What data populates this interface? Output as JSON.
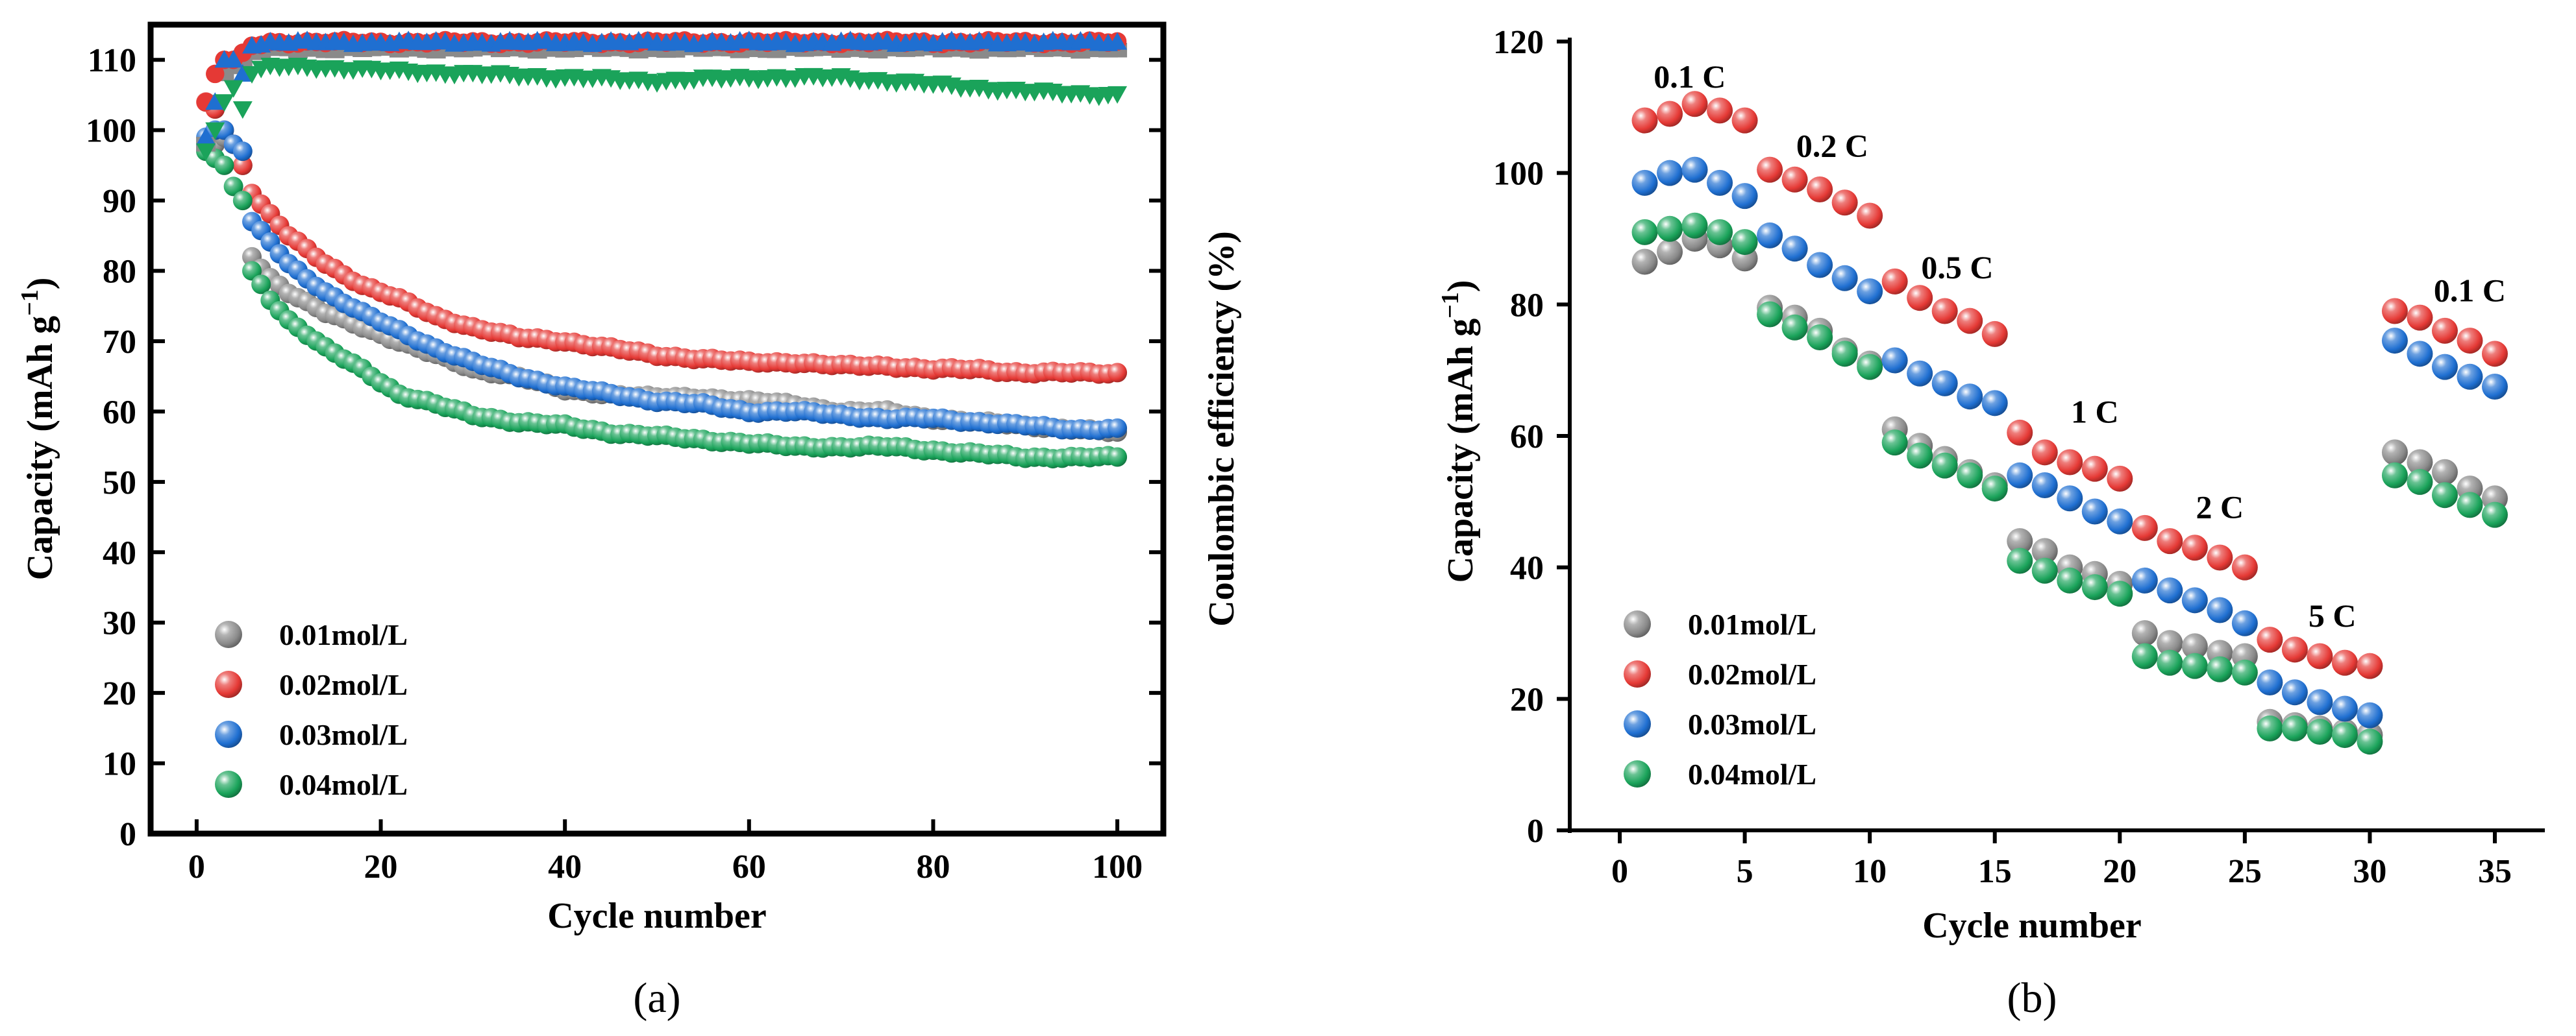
{
  "chart_data": [
    {
      "panel": "(a)",
      "type": "scatter",
      "xlabel": "Cycle number",
      "ylabel": "Capacity (mAh g",
      "ylabel_sup": "−1",
      "ylabel_close": ")",
      "y2label": "Coulombic efficiency (%)",
      "xlim": [
        -5,
        105
      ],
      "ylim": [
        0,
        115
      ],
      "xticks": [
        0,
        20,
        40,
        60,
        80,
        100
      ],
      "yticks": [
        0,
        10,
        20,
        30,
        40,
        50,
        60,
        70,
        80,
        90,
        100,
        110
      ],
      "legend_position": "bottom-left",
      "series": [
        {
          "name": "0.01mol/L",
          "color": "#8a8a8a",
          "ce_color": "#8a8a8a",
          "ce_marker": "square",
          "capacity": [
            [
              1,
              97
            ],
            [
              2,
              98
            ],
            [
              3,
              99
            ],
            [
              4,
              98
            ],
            [
              5,
              95
            ],
            [
              6,
              82
            ],
            [
              8,
              79
            ],
            [
              10,
              77
            ],
            [
              14,
              74
            ],
            [
              18,
              72
            ],
            [
              22,
              70
            ],
            [
              26,
              68
            ],
            [
              30,
              66
            ],
            [
              35,
              65
            ],
            [
              40,
              63
            ],
            [
              45,
              62.5
            ],
            [
              50,
              62
            ],
            [
              55,
              62
            ],
            [
              60,
              61.5
            ],
            [
              65,
              61
            ],
            [
              70,
              60
            ],
            [
              75,
              60
            ],
            [
              80,
              59
            ],
            [
              85,
              58.5
            ],
            [
              90,
              58
            ],
            [
              95,
              57.5
            ],
            [
              100,
              57
            ]
          ],
          "ce": [
            [
              1,
              98
            ],
            [
              2,
              104
            ],
            [
              3,
              108
            ],
            [
              4,
              109
            ],
            [
              6,
              111
            ],
            [
              8,
              111.5
            ],
            [
              12,
              111.5
            ],
            [
              20,
              111.5
            ],
            [
              30,
              111.5
            ],
            [
              40,
              111.5
            ],
            [
              50,
              111.5
            ],
            [
              60,
              111.5
            ],
            [
              70,
              111.5
            ],
            [
              80,
              111.5
            ],
            [
              90,
              111.5
            ],
            [
              100,
              111.5
            ]
          ]
        },
        {
          "name": "0.02mol/L",
          "color": "#e53935",
          "ce_color": "#e53935",
          "ce_marker": "circle",
          "capacity": [
            [
              1,
              104
            ],
            [
              2,
              103
            ],
            [
              3,
              100
            ],
            [
              4,
              98
            ],
            [
              5,
              95
            ],
            [
              6,
              91
            ],
            [
              8,
              88
            ],
            [
              10,
              85
            ],
            [
              14,
              81
            ],
            [
              18,
              78
            ],
            [
              22,
              76
            ],
            [
              26,
              73.5
            ],
            [
              30,
              72
            ],
            [
              35,
              70.5
            ],
            [
              40,
              70
            ],
            [
              45,
              69
            ],
            [
              50,
              68
            ],
            [
              55,
              67.5
            ],
            [
              60,
              67
            ],
            [
              65,
              67
            ],
            [
              70,
              66.5
            ],
            [
              75,
              66.5
            ],
            [
              80,
              66
            ],
            [
              85,
              66
            ],
            [
              90,
              65.5
            ],
            [
              95,
              65.5
            ],
            [
              100,
              65.5
            ]
          ],
          "ce": [
            [
              1,
              104
            ],
            [
              2,
              108
            ],
            [
              3,
              110
            ],
            [
              4,
              110
            ],
            [
              6,
              112
            ],
            [
              8,
              112.5
            ],
            [
              12,
              112.5
            ],
            [
              20,
              112.5
            ],
            [
              30,
              112.5
            ],
            [
              40,
              112.5
            ],
            [
              50,
              112.5
            ],
            [
              60,
              112.5
            ],
            [
              70,
              112.5
            ],
            [
              80,
              112.5
            ],
            [
              90,
              112.5
            ],
            [
              100,
              112.5
            ]
          ]
        },
        {
          "name": "0.03mol/L",
          "color": "#1f6fd1",
          "ce_color": "#1f6fd1",
          "ce_marker": "triangle-up",
          "capacity": [
            [
              1,
              99
            ],
            [
              2,
              100
            ],
            [
              3,
              100
            ],
            [
              4,
              98
            ],
            [
              5,
              97
            ],
            [
              6,
              87
            ],
            [
              8,
              84
            ],
            [
              10,
              81
            ],
            [
              14,
              77
            ],
            [
              18,
              74
            ],
            [
              22,
              71.5
            ],
            [
              26,
              69
            ],
            [
              30,
              67
            ],
            [
              35,
              65
            ],
            [
              40,
              63.5
            ],
            [
              45,
              62.5
            ],
            [
              50,
              61.5
            ],
            [
              55,
              61
            ],
            [
              60,
              60
            ],
            [
              65,
              60
            ],
            [
              70,
              59.5
            ],
            [
              75,
              59
            ],
            [
              80,
              59
            ],
            [
              85,
              58.5
            ],
            [
              90,
              58
            ],
            [
              95,
              57.5
            ],
            [
              100,
              57.5
            ]
          ],
          "ce": [
            [
              1,
              99
            ],
            [
              2,
              104
            ],
            [
              3,
              110
            ],
            [
              4,
              110
            ],
            [
              5,
              108
            ],
            [
              6,
              112
            ],
            [
              8,
              112.5
            ],
            [
              12,
              112.5
            ],
            [
              20,
              112.5
            ],
            [
              30,
              112.5
            ],
            [
              40,
              112.5
            ],
            [
              50,
              112.5
            ],
            [
              60,
              112.5
            ],
            [
              70,
              112.5
            ],
            [
              80,
              112.5
            ],
            [
              90,
              112.5
            ],
            [
              100,
              112.5
            ]
          ]
        },
        {
          "name": "0.04mol/L",
          "color": "#1aa35a",
          "ce_color": "#1aa35a",
          "ce_marker": "triangle-down",
          "capacity": [
            [
              1,
              97
            ],
            [
              2,
              96
            ],
            [
              3,
              95
            ],
            [
              4,
              92
            ],
            [
              5,
              90
            ],
            [
              6,
              80
            ],
            [
              8,
              76
            ],
            [
              10,
              73
            ],
            [
              14,
              69
            ],
            [
              18,
              66
            ],
            [
              22,
              62.5
            ],
            [
              26,
              61
            ],
            [
              30,
              59.5
            ],
            [
              35,
              58.5
            ],
            [
              40,
              58
            ],
            [
              45,
              57
            ],
            [
              50,
              56.5
            ],
            [
              55,
              56
            ],
            [
              60,
              55.5
            ],
            [
              65,
              55
            ],
            [
              70,
              55
            ],
            [
              75,
              55
            ],
            [
              80,
              54.5
            ],
            [
              85,
              54
            ],
            [
              90,
              53.5
            ],
            [
              95,
              53.5
            ],
            [
              100,
              53.5
            ]
          ],
          "ce": [
            [
              1,
              97
            ],
            [
              2,
              100
            ],
            [
              3,
              104
            ],
            [
              4,
              106
            ],
            [
              5,
              103
            ],
            [
              6,
              108
            ],
            [
              8,
              109
            ],
            [
              12,
              109
            ],
            [
              20,
              108.5
            ],
            [
              30,
              108
            ],
            [
              40,
              107.5
            ],
            [
              50,
              107
            ],
            [
              60,
              107.5
            ],
            [
              70,
              107.5
            ],
            [
              80,
              106.5
            ],
            [
              90,
              105.5
            ],
            [
              100,
              105
            ]
          ]
        }
      ]
    },
    {
      "panel": "(b)",
      "type": "scatter",
      "xlabel": "Cycle number",
      "ylabel": "Capacity (mAh g",
      "ylabel_sup": "−1",
      "ylabel_close": ")",
      "xlim": [
        -2,
        37
      ],
      "ylim": [
        0,
        120
      ],
      "xticks": [
        0,
        5,
        10,
        15,
        20,
        25,
        30,
        35
      ],
      "yticks": [
        0,
        20,
        40,
        60,
        80,
        100,
        120
      ],
      "legend_position": "bottom-left",
      "rate_labels": [
        {
          "text": "0.1 C",
          "x": 2.8,
          "y": 113
        },
        {
          "text": "0.2 C",
          "x": 8.5,
          "y": 102.5
        },
        {
          "text": "0.5 C",
          "x": 13.5,
          "y": 84
        },
        {
          "text": "1 C",
          "x": 19,
          "y": 62
        },
        {
          "text": "2 C",
          "x": 24,
          "y": 47.5
        },
        {
          "text": "5 C",
          "x": 28.5,
          "y": 31
        },
        {
          "text": "0.1 C",
          "x": 34,
          "y": 80.5
        }
      ],
      "series": [
        {
          "name": "0.01mol/L",
          "color": "#8a8a8a",
          "x": [
            1,
            2,
            3,
            4,
            5,
            6,
            7,
            8,
            9,
            10,
            11,
            12,
            13,
            14,
            15,
            16,
            17,
            18,
            19,
            20,
            21,
            22,
            23,
            24,
            25,
            26,
            27,
            28,
            29,
            30,
            31,
            32,
            33,
            34,
            35
          ],
          "y": [
            86.5,
            88,
            90,
            89,
            87,
            79.5,
            78,
            76,
            73,
            71,
            61,
            58.5,
            56.5,
            54.5,
            52.5,
            44,
            42.5,
            40,
            39,
            37.5,
            30,
            28.5,
            28,
            27,
            26.5,
            16.5,
            16,
            15.5,
            15,
            14.5,
            57.5,
            56,
            54.5,
            52,
            50.5
          ]
        },
        {
          "name": "0.02mol/L",
          "color": "#e53935",
          "x": [
            1,
            2,
            3,
            4,
            5,
            6,
            7,
            8,
            9,
            10,
            11,
            12,
            13,
            14,
            15,
            16,
            17,
            18,
            19,
            20,
            21,
            22,
            23,
            24,
            25,
            26,
            27,
            28,
            29,
            30,
            31,
            32,
            33,
            34,
            35
          ],
          "y": [
            108,
            109,
            110.5,
            109.5,
            108,
            100.5,
            99,
            97.5,
            95.5,
            93.5,
            83.5,
            81,
            79,
            77.5,
            75.5,
            60.5,
            57.5,
            56,
            55,
            53.5,
            46,
            44,
            43,
            41.5,
            40,
            29,
            27.5,
            26.5,
            25.5,
            25,
            79,
            78,
            76,
            74.5,
            72.5
          ]
        },
        {
          "name": "0.03mol/L",
          "color": "#1f6fd1",
          "x": [
            1,
            2,
            3,
            4,
            5,
            6,
            7,
            8,
            9,
            10,
            11,
            12,
            13,
            14,
            15,
            16,
            17,
            18,
            19,
            20,
            21,
            22,
            23,
            24,
            25,
            26,
            27,
            28,
            29,
            30,
            31,
            32,
            33,
            34,
            35
          ],
          "y": [
            98.5,
            100,
            100.5,
            98.5,
            96.5,
            90.5,
            88.5,
            86,
            84,
            82,
            71.5,
            69.5,
            68,
            66,
            65,
            54,
            52.5,
            50.5,
            48.5,
            47,
            38,
            36.5,
            35,
            33.5,
            31.5,
            22.5,
            21,
            19.5,
            18.5,
            17.5,
            74.5,
            72.5,
            70.5,
            69,
            67.5
          ]
        },
        {
          "name": "0.04mol/L",
          "color": "#1aa35a",
          "x": [
            1,
            2,
            3,
            4,
            5,
            6,
            7,
            8,
            9,
            10,
            11,
            12,
            13,
            14,
            15,
            16,
            17,
            18,
            19,
            20,
            21,
            22,
            23,
            24,
            25,
            26,
            27,
            28,
            29,
            30,
            31,
            32,
            33,
            34,
            35
          ],
          "y": [
            91,
            91.5,
            92,
            91,
            89.5,
            78.5,
            76.5,
            75,
            72.5,
            70.5,
            59,
            57,
            55.5,
            54,
            52,
            41,
            39.5,
            38,
            37,
            36,
            26.5,
            25.5,
            25,
            24.5,
            24,
            15.5,
            15.5,
            15,
            14.5,
            13.5,
            54,
            53,
            51,
            49.5,
            48
          ]
        }
      ]
    }
  ],
  "captions": {
    "a": "(a)",
    "b": "(b)"
  }
}
